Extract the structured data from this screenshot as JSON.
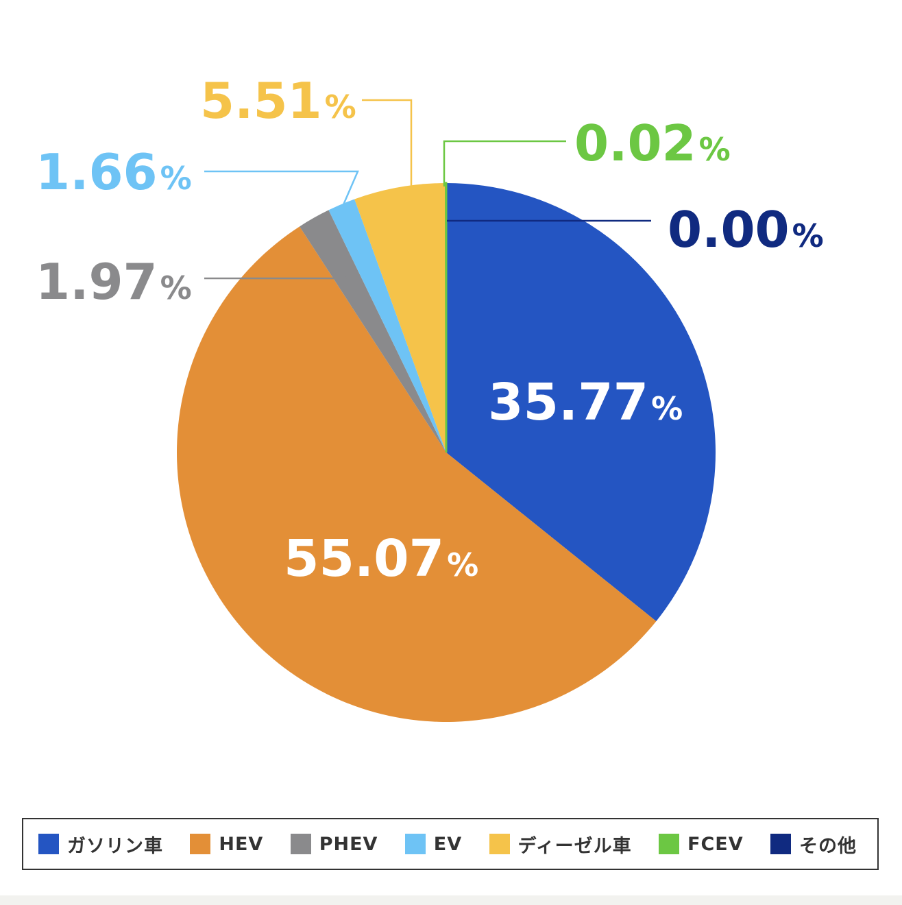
{
  "chart_data": {
    "type": "pie",
    "slices": [
      {
        "name": "ガソリン車",
        "value": 35.77,
        "label": "35.77",
        "unit": "%",
        "color": "#2455c2"
      },
      {
        "name": "HEV",
        "value": 55.07,
        "label": "55.07",
        "unit": "%",
        "color": "#e38f37"
      },
      {
        "name": "PHEV",
        "value": 1.97,
        "label": "1.97",
        "unit": "%",
        "color": "#8a8a8c"
      },
      {
        "name": "EV",
        "value": 1.66,
        "label": "1.66",
        "unit": "%",
        "color": "#6ec3f5"
      },
      {
        "name": "ディーゼル車",
        "value": 5.51,
        "label": "5.51",
        "unit": "%",
        "color": "#f5c34a"
      },
      {
        "name": "FCEV",
        "value": 0.02,
        "label": "0.02",
        "unit": "%",
        "color": "#6cc743"
      },
      {
        "name": "その他",
        "value": 0.0,
        "label": "0.00",
        "unit": "%",
        "color": "#102a80"
      }
    ],
    "start_angle": "12 o'clock",
    "direction": "clockwise",
    "legend_position": "bottom"
  },
  "legend": {
    "items": [
      {
        "label": "ガソリン車",
        "color": "#2455c2"
      },
      {
        "label": "HEV",
        "color": "#e38f37"
      },
      {
        "label": "PHEV",
        "color": "#8a8a8c"
      },
      {
        "label": "EV",
        "color": "#6ec3f5"
      },
      {
        "label": "ディーゼル車",
        "color": "#f5c34a"
      },
      {
        "label": "FCEV",
        "color": "#6cc743"
      },
      {
        "label": "その他",
        "color": "#102a80"
      }
    ]
  }
}
